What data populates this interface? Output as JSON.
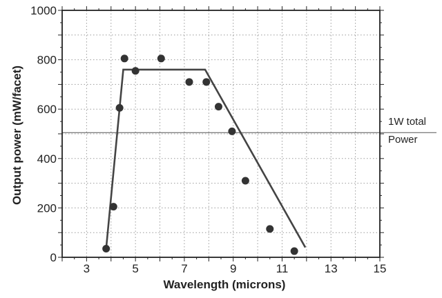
{
  "chart_data": {
    "type": "scatter",
    "title": "",
    "xlabel": "Wavelength (microns)",
    "ylabel": "Output power (mW/facet)",
    "xlim": [
      2,
      15
    ],
    "ylim": [
      0,
      1000
    ],
    "xticks": [
      3,
      5,
      7,
      9,
      11,
      13,
      15
    ],
    "yticks": [
      0,
      200,
      400,
      600,
      800,
      1000
    ],
    "xtick_labels": [
      "3",
      "5",
      "7",
      "9",
      "11",
      "13",
      "15"
    ],
    "ytick_labels": [
      "0",
      "200",
      "400",
      "600",
      "800",
      "1000"
    ],
    "grid": true,
    "colors": {
      "points": "#333333",
      "trend": "#444444",
      "grid": "#9a9a9a",
      "axis": "#222222"
    },
    "points": [
      {
        "x": 3.8,
        "y": 35
      },
      {
        "x": 4.1,
        "y": 205
      },
      {
        "x": 4.35,
        "y": 605
      },
      {
        "x": 4.55,
        "y": 805
      },
      {
        "x": 5.0,
        "y": 755
      },
      {
        "x": 6.05,
        "y": 805
      },
      {
        "x": 7.2,
        "y": 710
      },
      {
        "x": 7.9,
        "y": 710
      },
      {
        "x": 8.4,
        "y": 610
      },
      {
        "x": 8.95,
        "y": 510
      },
      {
        "x": 9.5,
        "y": 310
      },
      {
        "x": 10.5,
        "y": 115
      },
      {
        "x": 11.5,
        "y": 25
      }
    ],
    "trend_line": [
      {
        "x": 3.8,
        "y": 35
      },
      {
        "x": 4.5,
        "y": 760
      },
      {
        "x": 7.85,
        "y": 760
      },
      {
        "x": 11.95,
        "y": 40
      }
    ],
    "reference_line": {
      "y": 505,
      "label_line1": "1W total",
      "label_line2": "Power"
    }
  }
}
